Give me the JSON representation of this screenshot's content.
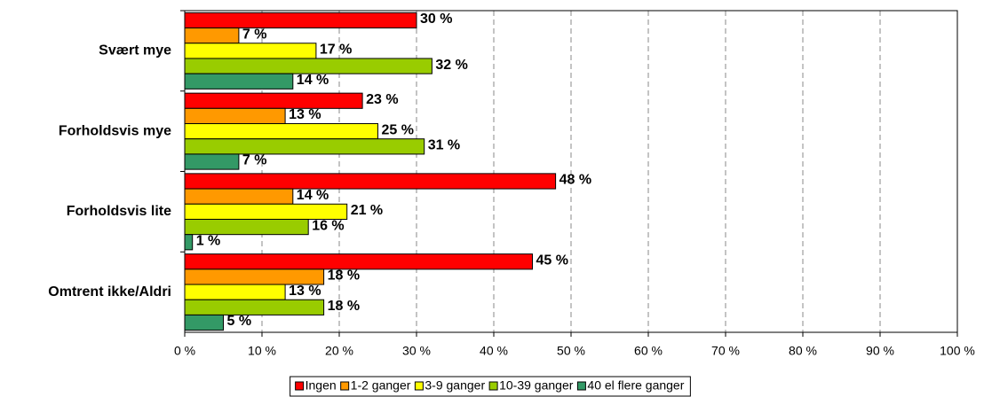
{
  "chart_data": {
    "type": "hbar",
    "categories": [
      "Svært mye",
      "Forholdsvis mye",
      "Forholdsvis lite",
      "Omtrent ikke/Aldri"
    ],
    "series": [
      {
        "name": "Ingen",
        "color": "#ff0000",
        "values": [
          30,
          23,
          48,
          45
        ],
        "value_labels": [
          "30 %",
          "23 %",
          "48 %",
          "45 %"
        ]
      },
      {
        "name": "1-2 ganger",
        "color": "#ff9900",
        "values": [
          7,
          13,
          14,
          18
        ],
        "value_labels": [
          "7 %",
          "13 %",
          "14 %",
          "18 %"
        ]
      },
      {
        "name": "3-9 ganger",
        "color": "#ffff00",
        "values": [
          17,
          25,
          21,
          13
        ],
        "value_labels": [
          "17 %",
          "25 %",
          "21 %",
          "13 %"
        ]
      },
      {
        "name": "10-39 ganger",
        "color": "#99cc00",
        "values": [
          32,
          31,
          16,
          18
        ],
        "value_labels": [
          "32 %",
          "31 %",
          "16 %",
          "18 %"
        ]
      },
      {
        "name": "40 el flere ganger",
        "color": "#339966",
        "values": [
          14,
          7,
          1,
          5
        ],
        "value_labels": [
          "14 %",
          "7 %",
          "1 %",
          "5 %"
        ]
      }
    ],
    "xlim": [
      0,
      100
    ],
    "xticks": [
      {
        "value": 0,
        "label": "0 %"
      },
      {
        "value": 10,
        "label": "10 %"
      },
      {
        "value": 20,
        "label": "20 %"
      },
      {
        "value": 30,
        "label": "30 %"
      },
      {
        "value": 40,
        "label": "40 %"
      },
      {
        "value": 50,
        "label": "50 %"
      },
      {
        "value": 60,
        "label": "60 %"
      },
      {
        "value": 70,
        "label": "70 %"
      },
      {
        "value": 80,
        "label": "80 %"
      },
      {
        "value": 90,
        "label": "90 %"
      },
      {
        "value": 100,
        "label": "100 %"
      }
    ],
    "grid": true,
    "legend": "bottom"
  }
}
